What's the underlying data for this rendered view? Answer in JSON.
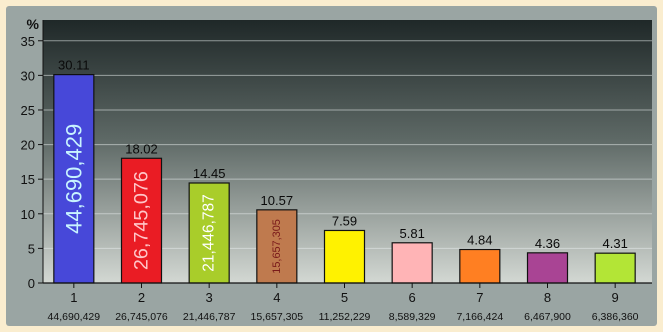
{
  "chart_data": {
    "type": "bar",
    "ylabel": "%",
    "ylim": [
      0,
      38
    ],
    "yticks": [
      0,
      5,
      10,
      15,
      20,
      25,
      30,
      35
    ],
    "grid": true,
    "categories": [
      "1",
      "2",
      "3",
      "4",
      "5",
      "6",
      "7",
      "8",
      "9"
    ],
    "values": [
      30.11,
      18.02,
      14.45,
      10.57,
      7.59,
      5.81,
      4.84,
      4.36,
      4.31
    ],
    "value_labels": [
      "30.11",
      "18.02",
      "14.45",
      "10.57",
      "7.59",
      "5.81",
      "4.84",
      "4.36",
      "4.31"
    ],
    "counts": [
      "44,690,429",
      "26,745,076",
      "21,446,787",
      "15,657,305",
      "11,252,229",
      "8,589,329",
      "7,166,424",
      "6,467,900",
      "6,386,360"
    ],
    "inner_labels": [
      "44,690,429",
      "26,745,076",
      "21,446,787",
      "15,657,305",
      "",
      "",
      "",
      "",
      ""
    ],
    "colors": [
      "#4748d9",
      "#ea1c24",
      "#a9cd2a",
      "#bf7a4e",
      "#fff200",
      "#ffb4b6",
      "#ff7f22",
      "#a94494",
      "#b3e536"
    ],
    "inner_label_colors": [
      "#c8f4ff",
      "#ffc6c9",
      "#ffffff",
      "#7a1a1a",
      "",
      "",
      "",
      "",
      ""
    ]
  }
}
